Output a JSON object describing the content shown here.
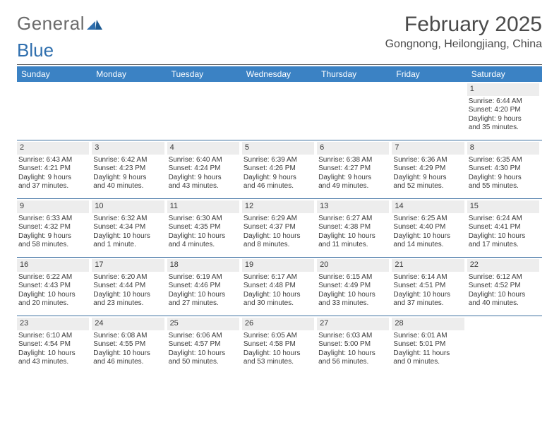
{
  "brand": {
    "part1": "General",
    "part2": "Blue"
  },
  "title": "February 2025",
  "location": "Gongnong, Heilongjiang, China",
  "colors": {
    "header_bg": "#3b82c4",
    "header_text": "#ffffff",
    "daynum_bg": "#ededed",
    "row_border": "#3b6ea0",
    "text": "#3a3a3a",
    "logo_gray": "#6b6b6b",
    "logo_blue": "#2f6fae"
  },
  "weekdays": [
    "Sunday",
    "Monday",
    "Tuesday",
    "Wednesday",
    "Thursday",
    "Friday",
    "Saturday"
  ],
  "weeks": [
    [
      {
        "empty": true
      },
      {
        "empty": true
      },
      {
        "empty": true
      },
      {
        "empty": true
      },
      {
        "empty": true
      },
      {
        "empty": true
      },
      {
        "day": "1",
        "sunrise": "Sunrise: 6:44 AM",
        "sunset": "Sunset: 4:20 PM",
        "daylight1": "Daylight: 9 hours",
        "daylight2": "and 35 minutes."
      }
    ],
    [
      {
        "day": "2",
        "sunrise": "Sunrise: 6:43 AM",
        "sunset": "Sunset: 4:21 PM",
        "daylight1": "Daylight: 9 hours",
        "daylight2": "and 37 minutes."
      },
      {
        "day": "3",
        "sunrise": "Sunrise: 6:42 AM",
        "sunset": "Sunset: 4:23 PM",
        "daylight1": "Daylight: 9 hours",
        "daylight2": "and 40 minutes."
      },
      {
        "day": "4",
        "sunrise": "Sunrise: 6:40 AM",
        "sunset": "Sunset: 4:24 PM",
        "daylight1": "Daylight: 9 hours",
        "daylight2": "and 43 minutes."
      },
      {
        "day": "5",
        "sunrise": "Sunrise: 6:39 AM",
        "sunset": "Sunset: 4:26 PM",
        "daylight1": "Daylight: 9 hours",
        "daylight2": "and 46 minutes."
      },
      {
        "day": "6",
        "sunrise": "Sunrise: 6:38 AM",
        "sunset": "Sunset: 4:27 PM",
        "daylight1": "Daylight: 9 hours",
        "daylight2": "and 49 minutes."
      },
      {
        "day": "7",
        "sunrise": "Sunrise: 6:36 AM",
        "sunset": "Sunset: 4:29 PM",
        "daylight1": "Daylight: 9 hours",
        "daylight2": "and 52 minutes."
      },
      {
        "day": "8",
        "sunrise": "Sunrise: 6:35 AM",
        "sunset": "Sunset: 4:30 PM",
        "daylight1": "Daylight: 9 hours",
        "daylight2": "and 55 minutes."
      }
    ],
    [
      {
        "day": "9",
        "sunrise": "Sunrise: 6:33 AM",
        "sunset": "Sunset: 4:32 PM",
        "daylight1": "Daylight: 9 hours",
        "daylight2": "and 58 minutes."
      },
      {
        "day": "10",
        "sunrise": "Sunrise: 6:32 AM",
        "sunset": "Sunset: 4:34 PM",
        "daylight1": "Daylight: 10 hours",
        "daylight2": "and 1 minute."
      },
      {
        "day": "11",
        "sunrise": "Sunrise: 6:30 AM",
        "sunset": "Sunset: 4:35 PM",
        "daylight1": "Daylight: 10 hours",
        "daylight2": "and 4 minutes."
      },
      {
        "day": "12",
        "sunrise": "Sunrise: 6:29 AM",
        "sunset": "Sunset: 4:37 PM",
        "daylight1": "Daylight: 10 hours",
        "daylight2": "and 8 minutes."
      },
      {
        "day": "13",
        "sunrise": "Sunrise: 6:27 AM",
        "sunset": "Sunset: 4:38 PM",
        "daylight1": "Daylight: 10 hours",
        "daylight2": "and 11 minutes."
      },
      {
        "day": "14",
        "sunrise": "Sunrise: 6:25 AM",
        "sunset": "Sunset: 4:40 PM",
        "daylight1": "Daylight: 10 hours",
        "daylight2": "and 14 minutes."
      },
      {
        "day": "15",
        "sunrise": "Sunrise: 6:24 AM",
        "sunset": "Sunset: 4:41 PM",
        "daylight1": "Daylight: 10 hours",
        "daylight2": "and 17 minutes."
      }
    ],
    [
      {
        "day": "16",
        "sunrise": "Sunrise: 6:22 AM",
        "sunset": "Sunset: 4:43 PM",
        "daylight1": "Daylight: 10 hours",
        "daylight2": "and 20 minutes."
      },
      {
        "day": "17",
        "sunrise": "Sunrise: 6:20 AM",
        "sunset": "Sunset: 4:44 PM",
        "daylight1": "Daylight: 10 hours",
        "daylight2": "and 23 minutes."
      },
      {
        "day": "18",
        "sunrise": "Sunrise: 6:19 AM",
        "sunset": "Sunset: 4:46 PM",
        "daylight1": "Daylight: 10 hours",
        "daylight2": "and 27 minutes."
      },
      {
        "day": "19",
        "sunrise": "Sunrise: 6:17 AM",
        "sunset": "Sunset: 4:48 PM",
        "daylight1": "Daylight: 10 hours",
        "daylight2": "and 30 minutes."
      },
      {
        "day": "20",
        "sunrise": "Sunrise: 6:15 AM",
        "sunset": "Sunset: 4:49 PM",
        "daylight1": "Daylight: 10 hours",
        "daylight2": "and 33 minutes."
      },
      {
        "day": "21",
        "sunrise": "Sunrise: 6:14 AM",
        "sunset": "Sunset: 4:51 PM",
        "daylight1": "Daylight: 10 hours",
        "daylight2": "and 37 minutes."
      },
      {
        "day": "22",
        "sunrise": "Sunrise: 6:12 AM",
        "sunset": "Sunset: 4:52 PM",
        "daylight1": "Daylight: 10 hours",
        "daylight2": "and 40 minutes."
      }
    ],
    [
      {
        "day": "23",
        "sunrise": "Sunrise: 6:10 AM",
        "sunset": "Sunset: 4:54 PM",
        "daylight1": "Daylight: 10 hours",
        "daylight2": "and 43 minutes."
      },
      {
        "day": "24",
        "sunrise": "Sunrise: 6:08 AM",
        "sunset": "Sunset: 4:55 PM",
        "daylight1": "Daylight: 10 hours",
        "daylight2": "and 46 minutes."
      },
      {
        "day": "25",
        "sunrise": "Sunrise: 6:06 AM",
        "sunset": "Sunset: 4:57 PM",
        "daylight1": "Daylight: 10 hours",
        "daylight2": "and 50 minutes."
      },
      {
        "day": "26",
        "sunrise": "Sunrise: 6:05 AM",
        "sunset": "Sunset: 4:58 PM",
        "daylight1": "Daylight: 10 hours",
        "daylight2": "and 53 minutes."
      },
      {
        "day": "27",
        "sunrise": "Sunrise: 6:03 AM",
        "sunset": "Sunset: 5:00 PM",
        "daylight1": "Daylight: 10 hours",
        "daylight2": "and 56 minutes."
      },
      {
        "day": "28",
        "sunrise": "Sunrise: 6:01 AM",
        "sunset": "Sunset: 5:01 PM",
        "daylight1": "Daylight: 11 hours",
        "daylight2": "and 0 minutes."
      },
      {
        "empty": true
      }
    ]
  ]
}
